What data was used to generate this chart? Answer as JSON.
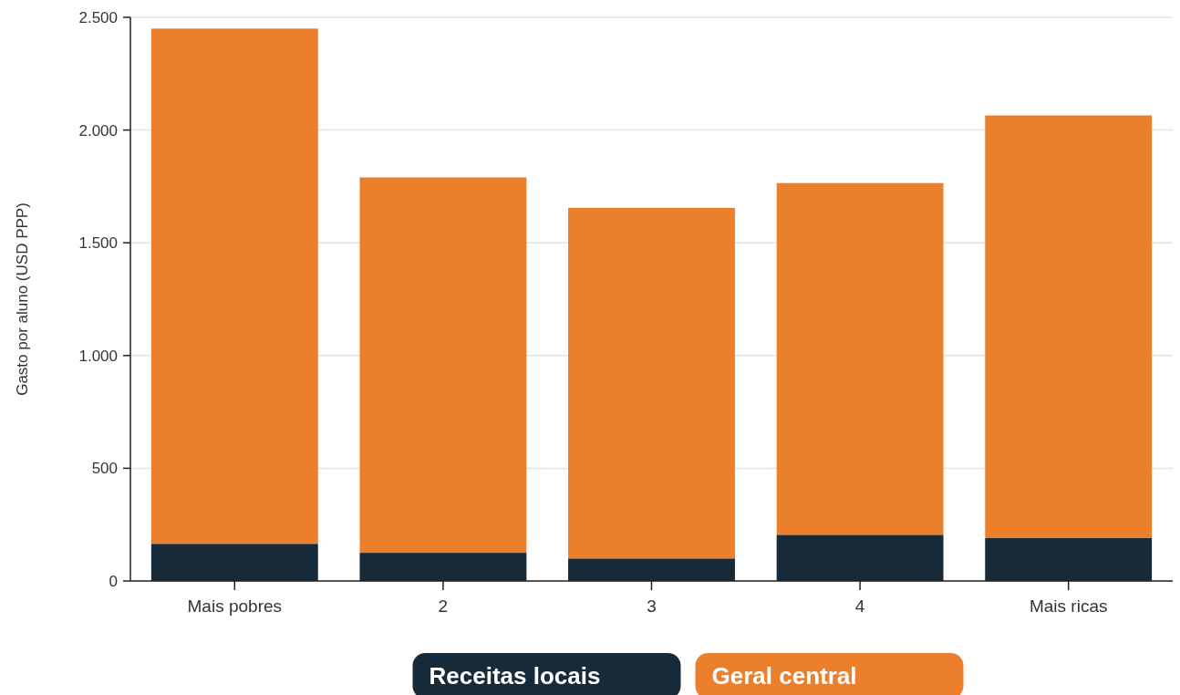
{
  "chart_data": {
    "type": "bar",
    "stacked": true,
    "ylabel": "Gasto por aluno (USD PPP)",
    "categories": [
      "Mais pobres",
      "2",
      "3",
      "4",
      "Mais ricas"
    ],
    "series": [
      {
        "name": "Receitas locais",
        "color": "#172a3a",
        "values": [
          165,
          125,
          100,
          205,
          190
        ]
      },
      {
        "name": "Geral central",
        "color": "#ec7f2b",
        "values": [
          2285,
          1665,
          1555,
          1560,
          1875
        ]
      }
    ],
    "ylim": [
      0,
      2500
    ],
    "yticks": [
      0,
      500,
      {
        "value": 1000,
        "label": "1.000"
      },
      {
        "value": 1500,
        "label": "1.500"
      },
      {
        "value": 2000,
        "label": "2.000"
      },
      {
        "value": 2500,
        "label": "2.500"
      }
    ],
    "grid": "y",
    "legend": "bottom"
  }
}
